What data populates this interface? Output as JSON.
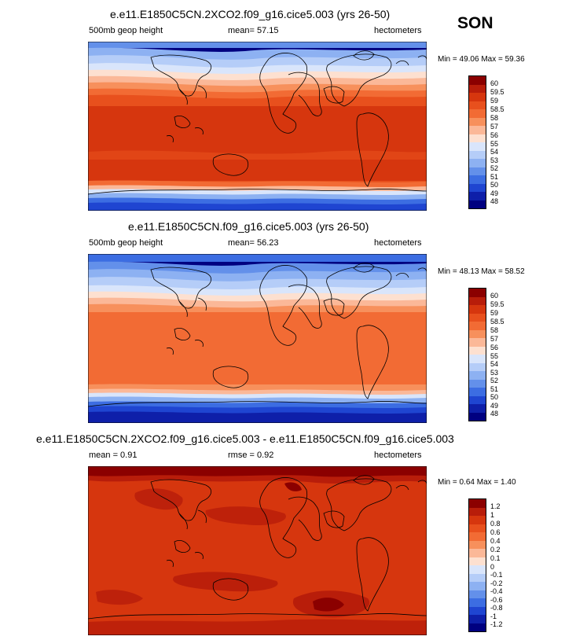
{
  "season": "SON",
  "panels": [
    {
      "title": "e.e11.E1850C5CN.2XCO2.f09_g16.cice5.003 (yrs 26-50)",
      "left_label": "500mb geop height",
      "center_label": "mean=  57.15",
      "right_label": "hectometers",
      "minmax": "Min =  49.06 Max =  59.36",
      "colorbar_labels": [
        "60",
        "59.5",
        "59",
        "58.5",
        "58",
        "57",
        "56",
        "55",
        "54",
        "53",
        "52",
        "51",
        "50",
        "49",
        "48"
      ],
      "colors": [
        "#8b0000",
        "#b81d0a",
        "#d6360e",
        "#e8501d",
        "#f26b34",
        "#f7905c",
        "#fbb898",
        "#fde0d0",
        "#d9e5fb",
        "#b5cdf8",
        "#8db1f2",
        "#6390ea",
        "#3c6de2",
        "#1f45d1",
        "#0e1fa9",
        "#000080"
      ]
    },
    {
      "title": "e.e11.E1850C5CN.f09_g16.cice5.003 (yrs 26-50)",
      "left_label": "500mb geop height",
      "center_label": "mean=  56.23",
      "right_label": "hectometers",
      "minmax": "Min =  48.13 Max =  58.52",
      "colorbar_labels": [
        "60",
        "59.5",
        "59",
        "58.5",
        "58",
        "57",
        "56",
        "55",
        "54",
        "53",
        "52",
        "51",
        "50",
        "49",
        "48"
      ],
      "colors": [
        "#8b0000",
        "#b81d0a",
        "#d6360e",
        "#e8501d",
        "#f26b34",
        "#f7905c",
        "#fbb898",
        "#fde0d0",
        "#d9e5fb",
        "#b5cdf8",
        "#8db1f2",
        "#6390ea",
        "#3c6de2",
        "#1f45d1",
        "#0e1fa9",
        "#000080"
      ]
    },
    {
      "title": "e.e11.E1850C5CN.2XCO2.f09_g16.cice5.003 - e.e11.E1850C5CN.f09_g16.cice5.003",
      "left_label": "mean =   0.91",
      "center_label": "rmse =   0.92",
      "right_label": "hectometers",
      "minmax": "Min =   0.64 Max =   1.40",
      "colorbar_labels": [
        "1.2",
        "1",
        "0.8",
        "0.6",
        "0.4",
        "0.2",
        "0.1",
        "0",
        "-0.1",
        "-0.2",
        "-0.4",
        "-0.6",
        "-0.8",
        "-1",
        "-1.2"
      ],
      "colors": [
        "#8b0000",
        "#b81d0a",
        "#d6360e",
        "#e8501d",
        "#f26b34",
        "#f7905c",
        "#fbb898",
        "#fde0d0",
        "#d9e5fb",
        "#b5cdf8",
        "#8db1f2",
        "#6390ea",
        "#3c6de2",
        "#1f45d1",
        "#0e1fa9",
        "#000080"
      ]
    }
  ]
}
